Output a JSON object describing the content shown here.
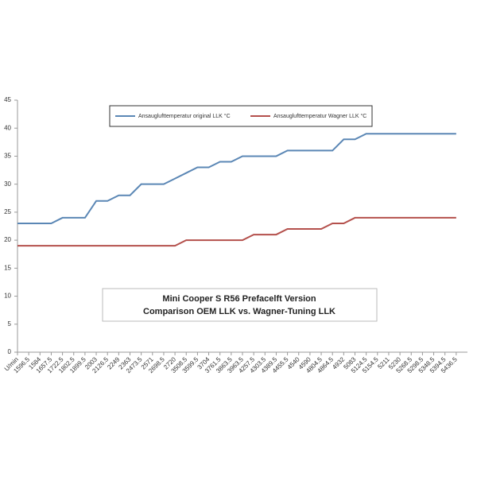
{
  "chart_data": {
    "type": "line",
    "title": "Mini Cooper S R56 Prefacelft Version",
    "subtitle": "Comparison OEM LLK vs. Wagner-Tuning LLK",
    "categories": [
      "U/min",
      "1596.5",
      "1584",
      "1657.5",
      "1722.5",
      "1802.5",
      "1899.5",
      "2003",
      "2126.5",
      "2249",
      "2363",
      "2473.5",
      "2571",
      "2698.5",
      "2720",
      "3508.5",
      "3599.5",
      "3704",
      "3761.5",
      "3863.5",
      "3963.5",
      "4257.5",
      "4303.5",
      "4389.5",
      "4455.5",
      "4540",
      "4590",
      "4804.5",
      "4864.5",
      "4932",
      "5083",
      "5124.5",
      "5154.5",
      "5211",
      "5230",
      "5268.5",
      "5298.5",
      "5348.5",
      "5394.5",
      "5436.5"
    ],
    "series": [
      {
        "name": "Ansauglufttemperatur original LLK °C",
        "color": "#5b87b5",
        "values": [
          23,
          23,
          23,
          23,
          24,
          24,
          24,
          27,
          27,
          28,
          28,
          30,
          30,
          30,
          31,
          32,
          33,
          33,
          34,
          34,
          35,
          35,
          35,
          35,
          36,
          36,
          36,
          36,
          36,
          38,
          38,
          39,
          39,
          39,
          39,
          39,
          39,
          39,
          39,
          39
        ]
      },
      {
        "name": "Ansauglufttemperatur Wagner LLK °C",
        "color": "#b4504c",
        "values": [
          19,
          19,
          19,
          19,
          19,
          19,
          19,
          19,
          19,
          19,
          19,
          19,
          19,
          19,
          19,
          20,
          20,
          20,
          20,
          20,
          20,
          21,
          21,
          21,
          22,
          22,
          22,
          22,
          23,
          23,
          24,
          24,
          24,
          24,
          24,
          24,
          24,
          24,
          24,
          24
        ]
      }
    ],
    "ylim": [
      0,
      45
    ],
    "yticks": [
      0,
      5,
      10,
      15,
      20,
      25,
      30,
      35,
      40,
      45
    ],
    "grid": false,
    "legend": "top"
  }
}
